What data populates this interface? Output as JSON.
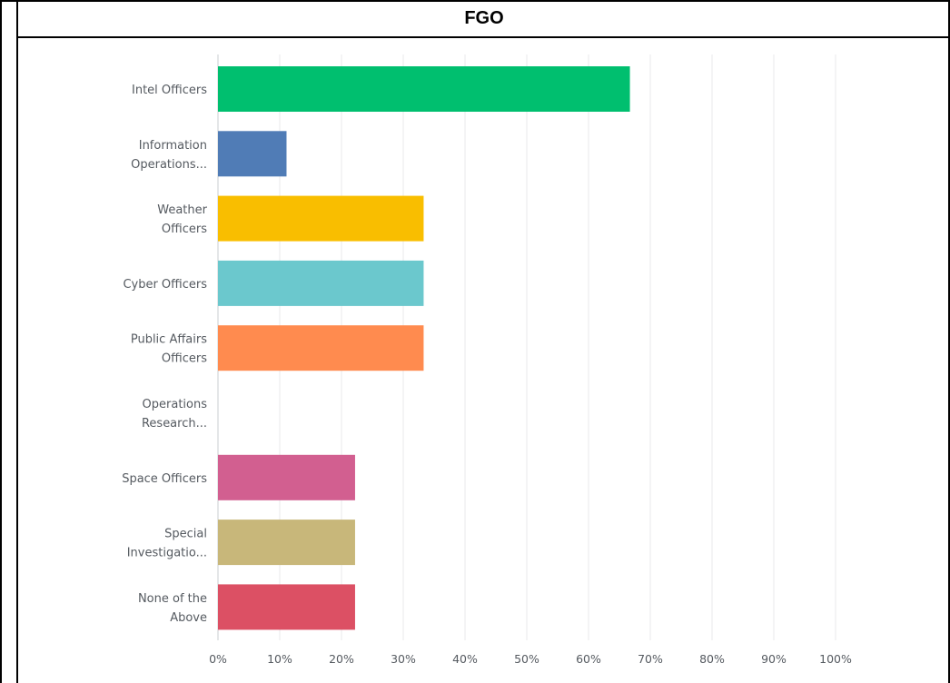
{
  "header": {
    "title": "FGO"
  },
  "chart_data": {
    "type": "bar",
    "orientation": "horizontal",
    "title": "FGO",
    "xlabel": "",
    "ylabel": "",
    "xlim": [
      0,
      100
    ],
    "grid": true,
    "legend": "none",
    "x_ticks": [
      "0%",
      "10%",
      "20%",
      "30%",
      "40%",
      "50%",
      "60%",
      "70%",
      "80%",
      "90%",
      "100%"
    ],
    "categories": [
      [
        "Intel Officers"
      ],
      [
        "Information",
        "Operations..."
      ],
      [
        "Weather",
        "Officers"
      ],
      [
        "Cyber Officers"
      ],
      [
        "Public Affairs",
        "Officers"
      ],
      [
        "Operations",
        "Research..."
      ],
      [
        "Space Officers"
      ],
      [
        "Special",
        "Investigatio..."
      ],
      [
        "None of the",
        "Above"
      ]
    ],
    "values": [
      66.7,
      11.1,
      33.3,
      33.3,
      33.3,
      0,
      22.2,
      22.2,
      22.2
    ],
    "colors": [
      "#00bf6f",
      "#507cb6",
      "#f9be00",
      "#6bc8cd",
      "#ff8b4f",
      "#7d5fa7",
      "#d25f90",
      "#c8b77a",
      "#dc5064"
    ]
  }
}
